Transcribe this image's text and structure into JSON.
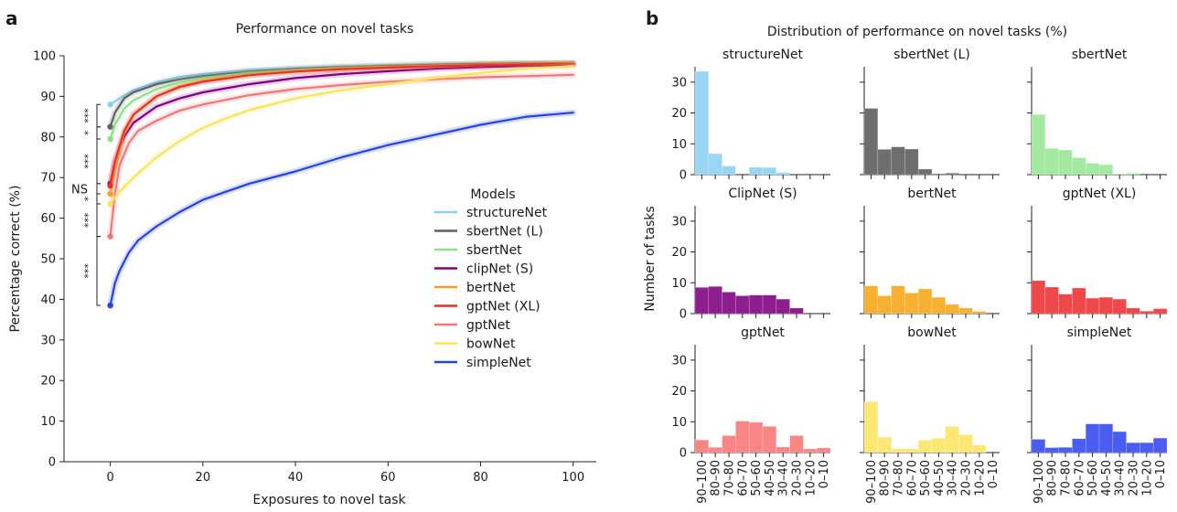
{
  "figure": {
    "panel_a_letter": "a",
    "panel_b_letter": "b"
  },
  "chart_data": [
    {
      "type": "line",
      "title": "Performance on novel tasks",
      "xlabel": "Exposures to novel task",
      "ylabel": "Percentage correct (%)",
      "xlim": [
        -10,
        105
      ],
      "ylim": [
        0,
        100
      ],
      "xticks": [
        0,
        20,
        40,
        60,
        80,
        100
      ],
      "yticks": [
        0,
        10,
        20,
        30,
        40,
        50,
        60,
        70,
        80,
        90,
        100
      ],
      "grid": false,
      "legend_title": "Models",
      "legend_position": "center-right",
      "series": [
        {
          "name": "structureNet",
          "color": "#8ecfef",
          "x": [
            0,
            2,
            5,
            10,
            15,
            20,
            30,
            40,
            50,
            60,
            70,
            80,
            90,
            100
          ],
          "y": [
            88,
            89.5,
            91.5,
            93.5,
            94.8,
            95.5,
            96.5,
            97,
            97.4,
            97.7,
            97.9,
            98,
            98.1,
            98.2
          ]
        },
        {
          "name": "sbertNet (L)",
          "color": "#606060",
          "x": [
            0,
            1,
            3,
            5,
            10,
            15,
            20,
            30,
            40,
            50,
            60,
            70,
            80,
            90,
            100
          ],
          "y": [
            82.5,
            86,
            89.5,
            91,
            93,
            94.2,
            95,
            96.1,
            96.8,
            97.2,
            97.5,
            97.8,
            98,
            98.1,
            98.2
          ]
        },
        {
          "name": "sbertNet",
          "color": "#8fdf8a",
          "x": [
            0,
            1,
            3,
            5,
            10,
            15,
            20,
            30,
            40,
            50,
            60,
            70,
            80,
            90,
            100
          ],
          "y": [
            79.5,
            83,
            87,
            89,
            91.8,
            93.5,
            94.5,
            95.8,
            96.5,
            97,
            97.3,
            97.6,
            97.8,
            98,
            98.1
          ]
        },
        {
          "name": "clipNet (S)",
          "color": "#800080",
          "x": [
            0,
            1,
            3,
            5,
            10,
            15,
            20,
            30,
            40,
            50,
            60,
            70,
            80,
            90,
            100
          ],
          "y": [
            68.5,
            74,
            80,
            83.5,
            87.5,
            89.5,
            91,
            93,
            94.5,
            95.5,
            96.2,
            96.8,
            97.2,
            97.5,
            97.8
          ]
        },
        {
          "name": "bertNet",
          "color": "#f7a023",
          "x": [
            0,
            1,
            3,
            5,
            10,
            15,
            20,
            30,
            40,
            50,
            60,
            70,
            80,
            90,
            100
          ],
          "y": [
            66,
            72,
            81,
            85.5,
            90,
            92.5,
            93.8,
            95.3,
            96.2,
            96.8,
            97.2,
            97.5,
            97.8,
            98,
            98.1
          ]
        },
        {
          "name": "gptNet (XL)",
          "color": "#e8302d",
          "x": [
            0,
            1,
            3,
            5,
            10,
            15,
            20,
            30,
            40,
            50,
            60,
            70,
            80,
            90,
            100
          ],
          "y": [
            68,
            74,
            81.5,
            85.5,
            90,
            92.3,
            93.6,
            95.2,
            96.1,
            96.7,
            97.1,
            97.4,
            97.7,
            97.9,
            98
          ]
        },
        {
          "name": "gptNet",
          "color": "#f57676",
          "x": [
            0,
            1,
            2,
            4,
            6,
            10,
            15,
            20,
            30,
            40,
            50,
            60,
            70,
            80,
            90,
            100
          ],
          "y": [
            55.5,
            66,
            73,
            78.5,
            81.5,
            84,
            86.5,
            88,
            90.3,
            91.8,
            92.8,
            93.6,
            94.2,
            94.7,
            95,
            95.3
          ]
        },
        {
          "name": "bowNet",
          "color": "#fbe35a",
          "x": [
            0,
            2,
            5,
            10,
            15,
            20,
            25,
            30,
            40,
            50,
            60,
            70,
            80,
            90,
            100
          ],
          "y": [
            63.5,
            66.5,
            70,
            75,
            79,
            82.2,
            84.6,
            86.6,
            89.5,
            91.5,
            93,
            94.5,
            95.8,
            96.8,
            97.5
          ]
        },
        {
          "name": "simpleNet",
          "color": "#2342e8",
          "x": [
            0,
            1,
            2,
            4,
            6,
            10,
            15,
            20,
            25,
            30,
            40,
            50,
            60,
            70,
            80,
            90,
            100
          ],
          "y": [
            38.5,
            44,
            47,
            51.5,
            54.5,
            58,
            61.5,
            64.5,
            66.5,
            68.5,
            71.5,
            75,
            78,
            80.5,
            83,
            85,
            86
          ]
        }
      ],
      "significance": [
        {
          "label": "***",
          "from": 88,
          "to": 82.5
        },
        {
          "label": "*",
          "from": 82.5,
          "to": 79.5
        },
        {
          "label": "***",
          "from": 79.5,
          "to": 68.5
        },
        {
          "label": "NS",
          "from": 68.5,
          "to": 66
        },
        {
          "label": "*",
          "from": 66,
          "to": 63.5
        },
        {
          "label": "***",
          "from": 63.5,
          "to": 55.5
        },
        {
          "label": "***",
          "from": 55.5,
          "to": 38.5
        }
      ]
    },
    {
      "type": "bar",
      "title": "Distribution of performance on novel tasks (%)",
      "ylabel": "Number of tasks",
      "ylim": [
        0,
        35
      ],
      "yticks": [
        0,
        10,
        20,
        30
      ],
      "categories": [
        "90–100",
        "80–90",
        "70–80",
        "60–70",
        "50–60",
        "40–50",
        "30–40",
        "20–30",
        "10–20",
        "0–10"
      ],
      "panels": [
        {
          "title": "structureNet",
          "color": "#9ad6f2",
          "values": [
            33.5,
            6.8,
            2.8,
            0,
            2.4,
            2.3,
            0.7,
            0,
            0,
            0
          ]
        },
        {
          "title": "sbertNet (L)",
          "color": "#6e6e6e",
          "values": [
            21.5,
            8.2,
            9,
            8.3,
            1.8,
            0.3,
            0.5,
            0,
            0,
            0
          ]
        },
        {
          "title": "sbertNet",
          "color": "#a3e9a0",
          "values": [
            19.5,
            8.5,
            8,
            5.5,
            3.7,
            3.2,
            0.3,
            0.5,
            0,
            0
          ]
        },
        {
          "title": "ClipNet (S)",
          "color": "#8e1d90",
          "values": [
            8.5,
            8.8,
            7,
            5.8,
            6,
            6,
            4.7,
            1.8,
            0,
            0
          ]
        },
        {
          "title": "bertNet",
          "color": "#f7b030",
          "values": [
            9,
            5.8,
            9,
            6.7,
            8,
            5.3,
            3,
            1.8,
            0.7,
            0
          ]
        },
        {
          "title": "gptNet (XL)",
          "color": "#f0474a",
          "values": [
            10.7,
            8.6,
            6.3,
            8.3,
            5,
            5.3,
            4.7,
            1.8,
            0.8,
            1.6
          ]
        },
        {
          "title": "gptNet",
          "color": "#f98585",
          "values": [
            4.1,
            1.7,
            5.5,
            10.2,
            9.8,
            8.5,
            1.8,
            5.5,
            1.2,
            1.5
          ]
        },
        {
          "title": "bowNet",
          "color": "#fbe772",
          "values": [
            16.5,
            5,
            1.2,
            1.2,
            4,
            4.7,
            8.5,
            5.8,
            2.4,
            0
          ]
        },
        {
          "title": "simpleNet",
          "color": "#4b5cf0",
          "values": [
            4.3,
            1.6,
            1.7,
            4.5,
            9.3,
            9.3,
            6.8,
            3.2,
            3.2,
            4.7
          ]
        }
      ]
    }
  ]
}
